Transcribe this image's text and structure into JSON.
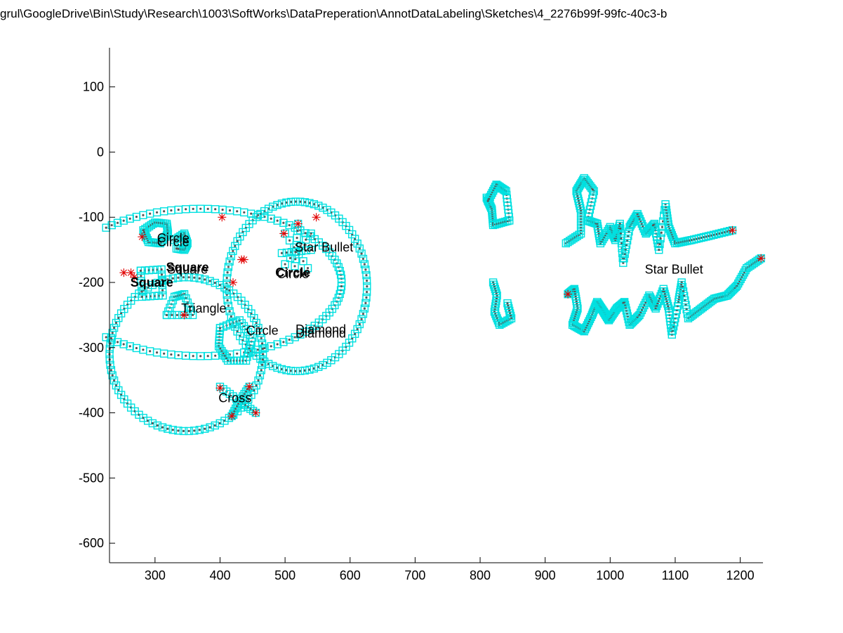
{
  "chart_data": {
    "type": "scatter",
    "title": "grul\\GoogleDrive\\Bin\\Study\\Research\\1003\\SoftWorks\\DataPreperation\\AnnotDataLabeling\\Sketches\\4_2276b99f-99fc-40c3-b",
    "xlabel": "",
    "ylabel": "",
    "xlim": [
      230,
      1235
    ],
    "ylim": [
      -630,
      160
    ],
    "x_ticks": [
      300,
      400,
      500,
      600,
      700,
      800,
      900,
      1000,
      1100,
      1200
    ],
    "y_ticks": [
      100,
      0,
      -100,
      -200,
      -300,
      -400,
      -500,
      -600
    ],
    "x_tick_labels": [
      "300",
      "400",
      "500",
      "600",
      "700",
      "800",
      "900",
      "1000",
      "1100",
      "1200"
    ],
    "y_tick_labels": [
      "100",
      "0",
      "-100",
      "-200",
      "-300",
      "-400",
      "-500",
      "-600"
    ],
    "grid": false,
    "colors": {
      "marker_box": "#00e0e0",
      "marker_dot": "#555555",
      "endpoint_star": "#e00000",
      "axis": "#000000"
    },
    "strokes": [
      {
        "kind": "ellipse",
        "cx": 370,
        "cy": -200,
        "rx": 217,
        "ry": 113,
        "n": 120
      },
      {
        "kind": "ellipse",
        "cx": 518,
        "cy": -206,
        "rx": 108,
        "ry": 130,
        "n": 95
      },
      {
        "kind": "ellipse",
        "cx": 348,
        "cy": -310,
        "rx": 118,
        "ry": 118,
        "n": 90
      },
      {
        "kind": "polyline",
        "n_between": 6,
        "points": [
          [
            282,
            -120
          ],
          [
            300,
            -108
          ],
          [
            318,
            -110
          ],
          [
            320,
            -125
          ],
          [
            308,
            -140
          ],
          [
            290,
            -138
          ],
          [
            282,
            -120
          ]
        ]
      },
      {
        "kind": "polyline",
        "n_between": 5,
        "points": [
          [
            330,
            -135
          ],
          [
            345,
            -125
          ],
          [
            350,
            -140
          ],
          [
            345,
            -150
          ],
          [
            333,
            -148
          ]
        ]
      },
      {
        "kind": "polyline",
        "n_between": 5,
        "points": [
          [
            278,
            -182
          ],
          [
            310,
            -180
          ],
          [
            312,
            -220
          ],
          [
            280,
            -222
          ],
          [
            278,
            -182
          ]
        ]
      },
      {
        "kind": "polyline",
        "n_between": 5,
        "points": [
          [
            318,
            -250
          ],
          [
            330,
            -222
          ],
          [
            345,
            -218
          ],
          [
            358,
            -250
          ],
          [
            318,
            -250
          ]
        ]
      },
      {
        "kind": "polyline",
        "n_between": 6,
        "points": [
          [
            400,
            -270
          ],
          [
            430,
            -258
          ],
          [
            450,
            -285
          ],
          [
            440,
            -320
          ],
          [
            412,
            -320
          ],
          [
            398,
            -298
          ],
          [
            400,
            -270
          ]
        ]
      },
      {
        "kind": "polyline",
        "n_between": 6,
        "points": [
          [
            520,
            -110
          ],
          [
            515,
            -175
          ]
        ]
      },
      {
        "kind": "polyline",
        "n_between": 6,
        "points": [
          [
            495,
            -155
          ],
          [
            540,
            -150
          ]
        ]
      },
      {
        "kind": "polyline",
        "n_between": 5,
        "points": [
          [
            500,
            -125
          ],
          [
            535,
            -178
          ]
        ]
      },
      {
        "kind": "polyline",
        "n_between": 5,
        "points": [
          [
            540,
            -125
          ],
          [
            500,
            -172
          ]
        ]
      },
      {
        "kind": "polyline",
        "n_between": 6,
        "points": [
          [
            400,
            -360
          ],
          [
            430,
            -382
          ],
          [
            455,
            -400
          ]
        ]
      },
      {
        "kind": "polyline",
        "n_between": 6,
        "points": [
          [
            445,
            -360
          ],
          [
            430,
            -382
          ],
          [
            418,
            -405
          ]
        ]
      },
      {
        "kind": "polyline",
        "n_between": 8,
        "points": [
          [
            932,
            -140
          ],
          [
            955,
            -125
          ],
          [
            955,
            -90
          ],
          [
            948,
            -60
          ],
          [
            960,
            -40
          ],
          [
            975,
            -60
          ],
          [
            965,
            -105
          ],
          [
            980,
            -110
          ],
          [
            985,
            -140
          ],
          [
            1000,
            -115
          ],
          [
            1008,
            -135
          ],
          [
            1015,
            -110
          ],
          [
            1020,
            -170
          ],
          [
            1030,
            -115
          ],
          [
            1042,
            -95
          ],
          [
            1055,
            -125
          ],
          [
            1068,
            -110
          ],
          [
            1075,
            -150
          ],
          [
            1085,
            -80
          ],
          [
            1090,
            -115
          ],
          [
            1100,
            -140
          ],
          [
            1125,
            -135
          ],
          [
            1155,
            -128
          ],
          [
            1188,
            -120
          ]
        ]
      },
      {
        "kind": "polyline",
        "n_between": 8,
        "points": [
          [
            810,
            -70
          ],
          [
            818,
            -88
          ],
          [
            820,
            -112
          ],
          [
            845,
            -105
          ],
          [
            840,
            -60
          ],
          [
            825,
            -50
          ],
          [
            812,
            -75
          ]
        ]
      },
      {
        "kind": "polyline",
        "n_between": 8,
        "points": [
          [
            935,
            -218
          ],
          [
            945,
            -210
          ],
          [
            950,
            -240
          ],
          [
            942,
            -265
          ],
          [
            960,
            -275
          ],
          [
            972,
            -250
          ],
          [
            980,
            -230
          ],
          [
            990,
            -245
          ],
          [
            998,
            -258
          ],
          [
            1010,
            -240
          ],
          [
            1022,
            -230
          ],
          [
            1030,
            -265
          ],
          [
            1045,
            -250
          ],
          [
            1060,
            -220
          ],
          [
            1070,
            -240
          ],
          [
            1082,
            -210
          ],
          [
            1090,
            -240
          ],
          [
            1095,
            -280
          ],
          [
            1105,
            -230
          ],
          [
            1110,
            -200
          ],
          [
            1120,
            -255
          ],
          [
            1140,
            -240
          ],
          [
            1160,
            -225
          ],
          [
            1180,
            -220
          ],
          [
            1195,
            -205
          ],
          [
            1210,
            -178
          ],
          [
            1232,
            -163
          ]
        ]
      },
      {
        "kind": "polyline",
        "n_between": 6,
        "points": [
          [
            820,
            -200
          ],
          [
            826,
            -220
          ],
          [
            822,
            -245
          ],
          [
            830,
            -265
          ],
          [
            848,
            -255
          ],
          [
            842,
            -232
          ]
        ]
      }
    ],
    "endpoints": [
      [
        252,
        -185
      ],
      [
        263,
        -185
      ],
      [
        268,
        -192
      ],
      [
        280,
        -130
      ],
      [
        345,
        -250
      ],
      [
        403,
        -100
      ],
      [
        420,
        -200
      ],
      [
        433,
        -165
      ],
      [
        437,
        -165
      ],
      [
        498,
        -125
      ],
      [
        520,
        -110
      ],
      [
        548,
        -100
      ],
      [
        400,
        -362
      ],
      [
        445,
        -360
      ],
      [
        418,
        -405
      ],
      [
        455,
        -400
      ],
      [
        935,
        -218
      ],
      [
        1188,
        -120
      ],
      [
        1232,
        -163
      ]
    ],
    "annotations": [
      {
        "text": "Circle",
        "x": 328,
        "y": -132,
        "bold": false
      },
      {
        "text": "Circle",
        "x": 328,
        "y": -138,
        "bold": false
      },
      {
        "text": "Square",
        "x": 350,
        "y": -177,
        "bold": true
      },
      {
        "text": "Square",
        "x": 350,
        "y": -180,
        "bold": false
      },
      {
        "text": "Square",
        "x": 295,
        "y": -200,
        "bold": true
      },
      {
        "text": "Star Bullet",
        "x": 560,
        "y": -146,
        "bold": false
      },
      {
        "text": "Circle",
        "x": 512,
        "y": -185,
        "bold": true
      },
      {
        "text": "Circle",
        "x": 512,
        "y": -187,
        "bold": false
      },
      {
        "text": "Triangle",
        "x": 375,
        "y": -240,
        "bold": false
      },
      {
        "text": "Circle",
        "x": 465,
        "y": -274,
        "bold": false
      },
      {
        "text": "Diamond",
        "x": 555,
        "y": -272,
        "bold": false
      },
      {
        "text": "Diamond",
        "x": 555,
        "y": -278,
        "bold": false
      },
      {
        "text": "Cross",
        "x": 423,
        "y": -377,
        "bold": false
      },
      {
        "text": "Star Bullet",
        "x": 1098,
        "y": -180,
        "bold": false
      }
    ]
  }
}
